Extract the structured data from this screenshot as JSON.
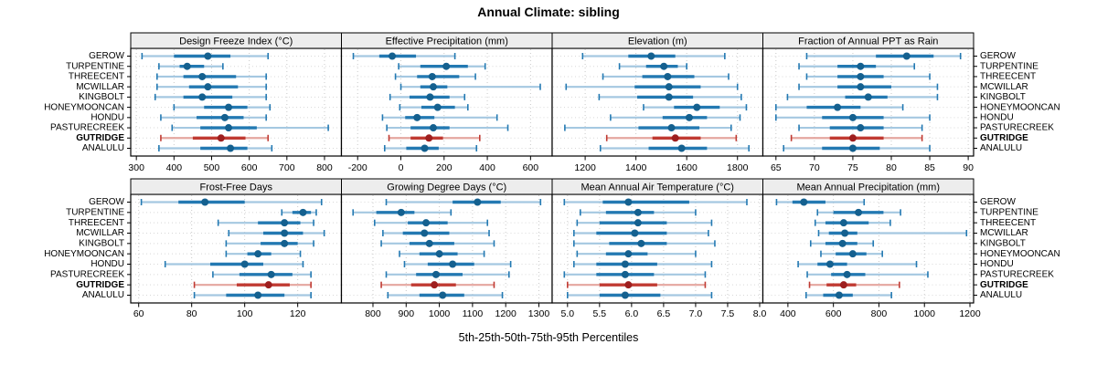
{
  "title": "Annual Climate: sibling",
  "caption": "5th-25th-50th-75th-95th Percentiles",
  "colors": {
    "normal": {
      "faint": "#A5C8E1",
      "solid": "#2379B2",
      "dot": "#14608F"
    },
    "highlight": {
      "faint": "#E4A69F",
      "solid": "#C03A32",
      "dot": "#9E1F1F"
    },
    "grid": "#C9C9C9",
    "row_line": "#D8D8D8",
    "strip_bg": "#EDEDED",
    "border": "#000000"
  },
  "chart_data": {
    "type": "dotplot-intervals",
    "percentile_labels": [
      "5th",
      "25th",
      "50th",
      "75th",
      "95th"
    ],
    "stations": [
      "GEROW",
      "TURPENTINE",
      "THREECENT",
      "MCWILLAR",
      "KINGBOLT",
      "HONEYMOONCAN",
      "HONDU",
      "PASTURECREEK",
      "GUTRIDGE",
      "ANALULU"
    ],
    "highlight_station": "GUTRIDGE",
    "layout": "2 rows x 4 cols, station labels on left and right, grid dotted",
    "panels": [
      {
        "title": "Design Freeze Index (°C)",
        "row": 0,
        "col": 0,
        "domain": [
          285,
          845
        ],
        "ticks": [
          300,
          400,
          500,
          600,
          700,
          800
        ],
        "decimals": 0,
        "values": [
          [
            315,
            400,
            490,
            550,
            650
          ],
          [
            360,
            415,
            435,
            480,
            530
          ],
          [
            355,
            425,
            475,
            565,
            645
          ],
          [
            355,
            440,
            490,
            570,
            645
          ],
          [
            350,
            425,
            475,
            555,
            645
          ],
          [
            400,
            480,
            545,
            595,
            655
          ],
          [
            365,
            460,
            535,
            585,
            645
          ],
          [
            395,
            470,
            545,
            620,
            810
          ],
          [
            365,
            450,
            525,
            590,
            650
          ],
          [
            360,
            470,
            550,
            595,
            660
          ]
        ]
      },
      {
        "title": "Effective Precipitation (mm)",
        "row": 0,
        "col": 1,
        "domain": [
          -275,
          700
        ],
        "ticks": [
          -200,
          0,
          200,
          400,
          600
        ],
        "decimals": 0,
        "values": [
          [
            -220,
            -100,
            -40,
            70,
            250
          ],
          [
            -10,
            90,
            210,
            310,
            390
          ],
          [
            -25,
            75,
            145,
            270,
            345
          ],
          [
            0,
            90,
            150,
            215,
            645
          ],
          [
            -50,
            40,
            135,
            225,
            295
          ],
          [
            -5,
            95,
            170,
            250,
            310
          ],
          [
            -85,
            20,
            75,
            155,
            445
          ],
          [
            -65,
            45,
            150,
            225,
            495
          ],
          [
            -55,
            45,
            130,
            195,
            365
          ],
          [
            -75,
            25,
            110,
            175,
            350
          ]
        ]
      },
      {
        "title": "Elevation (m)",
        "row": 0,
        "col": 2,
        "domain": [
          1070,
          1900
        ],
        "ticks": [
          1200,
          1400,
          1600,
          1800
        ],
        "decimals": 0,
        "values": [
          [
            1190,
            1370,
            1460,
            1555,
            1750
          ],
          [
            1335,
            1440,
            1510,
            1565,
            1600
          ],
          [
            1270,
            1425,
            1525,
            1630,
            1765
          ],
          [
            1125,
            1395,
            1530,
            1655,
            1800
          ],
          [
            1255,
            1405,
            1530,
            1625,
            1815
          ],
          [
            1430,
            1550,
            1640,
            1730,
            1835
          ],
          [
            1300,
            1505,
            1610,
            1680,
            1810
          ],
          [
            1120,
            1410,
            1540,
            1650,
            1775
          ],
          [
            1285,
            1465,
            1555,
            1655,
            1795
          ],
          [
            1260,
            1450,
            1580,
            1680,
            1845
          ]
        ]
      },
      {
        "title": "Fraction of Annual PPT as Rain",
        "row": 0,
        "col": 3,
        "domain": [
          63.3,
          90.7
        ],
        "ticks": [
          65,
          70,
          75,
          80,
          85,
          90
        ],
        "decimals": 0,
        "values": [
          [
            69,
            78,
            82,
            85.5,
            89
          ],
          [
            68,
            73,
            76,
            78,
            83
          ],
          [
            69,
            73,
            76,
            79,
            85
          ],
          [
            68,
            73,
            76,
            80,
            86
          ],
          [
            66.5,
            74,
            77,
            79.5,
            86
          ],
          [
            65,
            69,
            73,
            76,
            81.5
          ],
          [
            65,
            71,
            75,
            79,
            85
          ],
          [
            68,
            72,
            76,
            79,
            84
          ],
          [
            67,
            72,
            75,
            79,
            84
          ],
          [
            66,
            71,
            75,
            78.5,
            85
          ]
        ]
      },
      {
        "title": "Frost-Free Days",
        "row": 1,
        "col": 0,
        "domain": [
          57,
          136.5
        ],
        "ticks": [
          60,
          80,
          100,
          120
        ],
        "decimals": 0,
        "values": [
          [
            61,
            75,
            85,
            100,
            129
          ],
          [
            114,
            118,
            122,
            125,
            127
          ],
          [
            90,
            105,
            115,
            121,
            126
          ],
          [
            94,
            107,
            115,
            122,
            130
          ],
          [
            93,
            106,
            115,
            120,
            126
          ],
          [
            93,
            101,
            105,
            110,
            121
          ],
          [
            70,
            87,
            100,
            107,
            122
          ],
          [
            88,
            98,
            110,
            118,
            125
          ],
          [
            81,
            97,
            109,
            117,
            125
          ],
          [
            81,
            93,
            105,
            115,
            125
          ]
        ]
      },
      {
        "title": "Growing Degree Days (°C)",
        "row": 1,
        "col": 1,
        "domain": [
          705,
          1340
        ],
        "ticks": [
          800,
          900,
          1000,
          1100,
          1200,
          1300
        ],
        "decimals": 0,
        "values": [
          [
            840,
            1040,
            1115,
            1185,
            1305
          ],
          [
            740,
            810,
            885,
            925,
            1035
          ],
          [
            805,
            905,
            960,
            1025,
            1145
          ],
          [
            830,
            890,
            955,
            1030,
            1150
          ],
          [
            825,
            910,
            970,
            1045,
            1165
          ],
          [
            880,
            940,
            1000,
            1055,
            1135
          ],
          [
            895,
            965,
            1040,
            1105,
            1215
          ],
          [
            840,
            930,
            990,
            1070,
            1210
          ],
          [
            825,
            915,
            985,
            1050,
            1165
          ],
          [
            845,
            940,
            1010,
            1075,
            1190
          ]
        ]
      },
      {
        "title": "Mean Annual Air Temperature (°C)",
        "row": 1,
        "col": 2,
        "domain": [
          4.76,
          8.05
        ],
        "ticks": [
          5.0,
          5.5,
          6.0,
          6.5,
          7.0,
          7.5,
          8.0
        ],
        "decimals": 1,
        "values": [
          [
            4.95,
            5.55,
            5.95,
            6.9,
            7.8
          ],
          [
            5.2,
            5.6,
            6.1,
            6.35,
            7.0
          ],
          [
            5.15,
            5.5,
            6.1,
            6.55,
            7.25
          ],
          [
            5.1,
            5.45,
            6.05,
            6.55,
            7.2
          ],
          [
            5.1,
            5.65,
            6.15,
            6.55,
            7.3
          ],
          [
            5.15,
            5.6,
            5.95,
            6.25,
            7.0
          ],
          [
            5.1,
            5.45,
            5.9,
            6.4,
            7.25
          ],
          [
            4.95,
            5.45,
            5.9,
            6.35,
            7.15
          ],
          [
            5.0,
            5.5,
            5.95,
            6.4,
            7.15
          ],
          [
            5.0,
            5.5,
            5.9,
            6.45,
            7.25
          ]
        ]
      },
      {
        "title": "Mean Annual Precipitation (mm)",
        "row": 1,
        "col": 3,
        "domain": [
          290,
          1216
        ],
        "ticks": [
          400,
          600,
          800,
          1000,
          1200
        ],
        "decimals": 0,
        "values": [
          [
            350,
            420,
            470,
            565,
            735
          ],
          [
            530,
            600,
            710,
            820,
            895
          ],
          [
            520,
            565,
            645,
            755,
            850
          ],
          [
            535,
            580,
            650,
            705,
            1185
          ],
          [
            500,
            565,
            640,
            705,
            775
          ],
          [
            545,
            610,
            685,
            745,
            815
          ],
          [
            445,
            530,
            585,
            660,
            965
          ],
          [
            485,
            590,
            660,
            740,
            1015
          ],
          [
            495,
            570,
            645,
            700,
            890
          ],
          [
            480,
            555,
            625,
            685,
            855
          ]
        ]
      }
    ]
  }
}
